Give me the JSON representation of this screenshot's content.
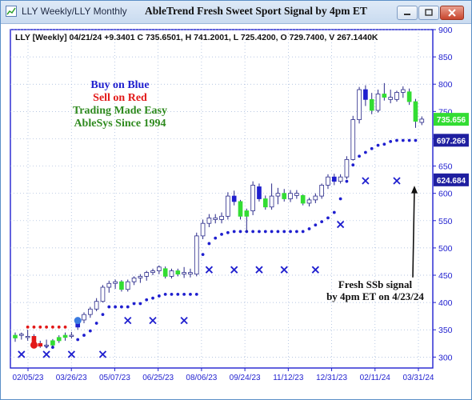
{
  "window": {
    "title": "LLY Weekly/LLY Monthly",
    "chart_title": "AbleTrend Fresh Sweet Sport Signal by 4pm ET"
  },
  "header": {
    "text": "LLY [Weekly] 04/21/24 +9.3401 C 735.6501, H 741.2001, L 725.4200, O 729.7400, V 267.1440K"
  },
  "legend": {
    "line1": "Buy on Blue",
    "line2": "Sell on Red",
    "line3": "Trading Made Easy",
    "line4": "AbleSys Since 1994"
  },
  "annotation": {
    "line1": "Fresh SSb signal",
    "line2": "by 4pm ET on 4/23/24"
  },
  "colors": {
    "green": "#33dd33",
    "blue": "#1f1fcf",
    "red": "#e21818",
    "white_candle": "#ffffff",
    "grid": "#9db3d8",
    "axis": "#1f1fcf",
    "buy_text": "#1f1fcf",
    "sell_text": "#e21818",
    "trading_text": "#2f8a1f"
  },
  "chart_data": {
    "type": "candlestick",
    "title": "AbleTrend Fresh Sweet Sport Signal by 4pm ET",
    "ylim": [
      280,
      900
    ],
    "y_ticks": [
      300,
      350,
      400,
      450,
      500,
      550,
      600,
      650,
      700,
      750,
      800,
      850,
      900
    ],
    "x_tick_labels": [
      "02/05/23",
      "03/26/23",
      "05/07/23",
      "06/25/23",
      "08/06/23",
      "09/24/23",
      "11/12/23",
      "12/31/23",
      "02/11/24",
      "03/31/24"
    ],
    "price_labels": [
      {
        "value": 735.656,
        "text": "735.656",
        "style": "green"
      },
      {
        "value": 697.266,
        "text": "697.266",
        "style": "blue"
      },
      {
        "value": 624.684,
        "text": "624.684",
        "style": "blue"
      }
    ],
    "candles": [
      {
        "o": 335,
        "h": 345,
        "l": 328,
        "c": 340,
        "color": "green"
      },
      {
        "o": 340,
        "h": 345,
        "l": 332,
        "c": 342,
        "color": "white"
      },
      {
        "o": 336,
        "h": 350,
        "l": 330,
        "c": 338,
        "color": "white"
      },
      {
        "o": 338,
        "h": 342,
        "l": 320,
        "c": 325,
        "color": "red"
      },
      {
        "o": 325,
        "h": 330,
        "l": 317,
        "c": 320,
        "color": "red"
      },
      {
        "o": 320,
        "h": 332,
        "l": 316,
        "c": 322,
        "color": "white"
      },
      {
        "o": 322,
        "h": 333,
        "l": 318,
        "c": 330,
        "color": "green"
      },
      {
        "o": 330,
        "h": 340,
        "l": 326,
        "c": 336,
        "color": "green"
      },
      {
        "o": 336,
        "h": 345,
        "l": 330,
        "c": 340,
        "color": "green"
      },
      {
        "o": 340,
        "h": 346,
        "l": 334,
        "c": 338,
        "color": "white"
      },
      {
        "o": 355,
        "h": 372,
        "l": 350,
        "c": 368,
        "color": "blue"
      },
      {
        "o": 368,
        "h": 382,
        "l": 362,
        "c": 378,
        "color": "white"
      },
      {
        "o": 378,
        "h": 392,
        "l": 372,
        "c": 388,
        "color": "white"
      },
      {
        "o": 388,
        "h": 408,
        "l": 384,
        "c": 402,
        "color": "white"
      },
      {
        "o": 402,
        "h": 432,
        "l": 400,
        "c": 428,
        "color": "white"
      },
      {
        "o": 428,
        "h": 440,
        "l": 418,
        "c": 435,
        "color": "white"
      },
      {
        "o": 435,
        "h": 442,
        "l": 425,
        "c": 438,
        "color": "white"
      },
      {
        "o": 438,
        "h": 441,
        "l": 420,
        "c": 424,
        "color": "green"
      },
      {
        "o": 424,
        "h": 442,
        "l": 420,
        "c": 438,
        "color": "white"
      },
      {
        "o": 438,
        "h": 448,
        "l": 432,
        "c": 445,
        "color": "white"
      },
      {
        "o": 445,
        "h": 452,
        "l": 436,
        "c": 448,
        "color": "white"
      },
      {
        "o": 448,
        "h": 458,
        "l": 440,
        "c": 455,
        "color": "white"
      },
      {
        "o": 455,
        "h": 462,
        "l": 450,
        "c": 458,
        "color": "white"
      },
      {
        "o": 458,
        "h": 468,
        "l": 452,
        "c": 465,
        "color": "white"
      },
      {
        "o": 462,
        "h": 466,
        "l": 444,
        "c": 448,
        "color": "green"
      },
      {
        "o": 448,
        "h": 462,
        "l": 444,
        "c": 458,
        "color": "white"
      },
      {
        "o": 458,
        "h": 462,
        "l": 448,
        "c": 452,
        "color": "green"
      },
      {
        "o": 452,
        "h": 465,
        "l": 445,
        "c": 455,
        "color": "white"
      },
      {
        "o": 455,
        "h": 462,
        "l": 446,
        "c": 452,
        "color": "white"
      },
      {
        "o": 452,
        "h": 528,
        "l": 448,
        "c": 522,
        "color": "white"
      },
      {
        "o": 522,
        "h": 552,
        "l": 516,
        "c": 545,
        "color": "white"
      },
      {
        "o": 545,
        "h": 562,
        "l": 538,
        "c": 555,
        "color": "white"
      },
      {
        "o": 555,
        "h": 562,
        "l": 545,
        "c": 552,
        "color": "white"
      },
      {
        "o": 552,
        "h": 565,
        "l": 545,
        "c": 558,
        "color": "white"
      },
      {
        "o": 558,
        "h": 602,
        "l": 552,
        "c": 595,
        "color": "white"
      },
      {
        "o": 595,
        "h": 605,
        "l": 578,
        "c": 585,
        "color": "blue"
      },
      {
        "o": 585,
        "h": 588,
        "l": 552,
        "c": 558,
        "color": "green"
      },
      {
        "o": 558,
        "h": 572,
        "l": 530,
        "c": 568,
        "color": "green"
      },
      {
        "o": 568,
        "h": 622,
        "l": 560,
        "c": 615,
        "color": "white"
      },
      {
        "o": 612,
        "h": 618,
        "l": 585,
        "c": 590,
        "color": "blue"
      },
      {
        "o": 590,
        "h": 596,
        "l": 570,
        "c": 575,
        "color": "green"
      },
      {
        "o": 575,
        "h": 618,
        "l": 570,
        "c": 595,
        "color": "white"
      },
      {
        "o": 595,
        "h": 610,
        "l": 580,
        "c": 600,
        "color": "white"
      },
      {
        "o": 600,
        "h": 608,
        "l": 585,
        "c": 590,
        "color": "green"
      },
      {
        "o": 590,
        "h": 606,
        "l": 584,
        "c": 600,
        "color": "white"
      },
      {
        "o": 600,
        "h": 606,
        "l": 590,
        "c": 596,
        "color": "white"
      },
      {
        "o": 596,
        "h": 598,
        "l": 578,
        "c": 582,
        "color": "green"
      },
      {
        "o": 582,
        "h": 592,
        "l": 576,
        "c": 588,
        "color": "white"
      },
      {
        "o": 588,
        "h": 600,
        "l": 582,
        "c": 595,
        "color": "white"
      },
      {
        "o": 595,
        "h": 618,
        "l": 590,
        "c": 615,
        "color": "white"
      },
      {
        "o": 615,
        "h": 635,
        "l": 608,
        "c": 630,
        "color": "white"
      },
      {
        "o": 630,
        "h": 636,
        "l": 615,
        "c": 622,
        "color": "blue"
      },
      {
        "o": 622,
        "h": 635,
        "l": 618,
        "c": 630,
        "color": "white"
      },
      {
        "o": 630,
        "h": 668,
        "l": 626,
        "c": 662,
        "color": "white"
      },
      {
        "o": 662,
        "h": 742,
        "l": 660,
        "c": 735,
        "color": "white"
      },
      {
        "o": 735,
        "h": 795,
        "l": 728,
        "c": 790,
        "color": "white"
      },
      {
        "o": 790,
        "h": 798,
        "l": 760,
        "c": 772,
        "color": "blue"
      },
      {
        "o": 772,
        "h": 784,
        "l": 745,
        "c": 752,
        "color": "green"
      },
      {
        "o": 752,
        "h": 790,
        "l": 748,
        "c": 782,
        "color": "white"
      },
      {
        "o": 782,
        "h": 802,
        "l": 770,
        "c": 776,
        "color": "green"
      },
      {
        "o": 776,
        "h": 790,
        "l": 765,
        "c": 772,
        "color": "white"
      },
      {
        "o": 772,
        "h": 788,
        "l": 768,
        "c": 785,
        "color": "white"
      },
      {
        "o": 785,
        "h": 796,
        "l": 775,
        "c": 790,
        "color": "white"
      },
      {
        "o": 786,
        "h": 792,
        "l": 762,
        "c": 768,
        "color": "green"
      },
      {
        "o": 768,
        "h": 773,
        "l": 720,
        "c": 732,
        "color": "green"
      },
      {
        "o": 730,
        "h": 741,
        "l": 725,
        "c": 736,
        "color": "white"
      }
    ],
    "stops": {
      "blue_dots": [
        {
          "x": 5,
          "y": 320
        },
        {
          "x": 6,
          "y": 318
        },
        {
          "x": 10,
          "y": 332
        },
        {
          "x": 11,
          "y": 340
        },
        {
          "x": 12,
          "y": 348
        },
        {
          "x": 13,
          "y": 362
        },
        {
          "x": 14,
          "y": 378
        },
        {
          "x": 15,
          "y": 392
        },
        {
          "x": 16,
          "y": 392
        },
        {
          "x": 17,
          "y": 392
        },
        {
          "x": 18,
          "y": 392
        },
        {
          "x": 19,
          "y": 398
        },
        {
          "x": 20,
          "y": 398
        },
        {
          "x": 21,
          "y": 405
        },
        {
          "x": 22,
          "y": 408
        },
        {
          "x": 23,
          "y": 412
        },
        {
          "x": 24,
          "y": 415
        },
        {
          "x": 25,
          "y": 415
        },
        {
          "x": 26,
          "y": 415
        },
        {
          "x": 27,
          "y": 415
        },
        {
          "x": 28,
          "y": 415
        },
        {
          "x": 29,
          "y": 415
        },
        {
          "x": 30,
          "y": 488
        },
        {
          "x": 31,
          "y": 508
        },
        {
          "x": 32,
          "y": 518
        },
        {
          "x": 33,
          "y": 525
        },
        {
          "x": 34,
          "y": 528
        },
        {
          "x": 35,
          "y": 530
        },
        {
          "x": 36,
          "y": 530
        },
        {
          "x": 37,
          "y": 530
        },
        {
          "x": 38,
          "y": 530
        },
        {
          "x": 39,
          "y": 530
        },
        {
          "x": 40,
          "y": 530
        },
        {
          "x": 41,
          "y": 530
        },
        {
          "x": 42,
          "y": 530
        },
        {
          "x": 43,
          "y": 530
        },
        {
          "x": 44,
          "y": 530
        },
        {
          "x": 45,
          "y": 530
        },
        {
          "x": 46,
          "y": 530
        },
        {
          "x": 47,
          "y": 535
        },
        {
          "x": 48,
          "y": 542
        },
        {
          "x": 49,
          "y": 548
        },
        {
          "x": 50,
          "y": 555
        },
        {
          "x": 51,
          "y": 565
        },
        {
          "x": 52,
          "y": 590
        },
        {
          "x": 53,
          "y": 622
        },
        {
          "x": 54,
          "y": 652
        },
        {
          "x": 55,
          "y": 668
        },
        {
          "x": 56,
          "y": 675
        },
        {
          "x": 57,
          "y": 682
        },
        {
          "x": 58,
          "y": 688
        },
        {
          "x": 59,
          "y": 690
        },
        {
          "x": 60,
          "y": 695
        },
        {
          "x": 61,
          "y": 697
        },
        {
          "x": 62,
          "y": 697
        },
        {
          "x": 63,
          "y": 697
        },
        {
          "x": 64,
          "y": 697
        }
      ],
      "red_dots": [
        {
          "x": 2,
          "y": 355
        },
        {
          "x": 3,
          "y": 355
        },
        {
          "x": 4,
          "y": 355
        },
        {
          "x": 5,
          "y": 355
        },
        {
          "x": 6,
          "y": 355
        },
        {
          "x": 7,
          "y": 355
        },
        {
          "x": 8,
          "y": 355
        }
      ]
    },
    "x_markers": [
      {
        "x": 1,
        "y": 305
      },
      {
        "x": 5,
        "y": 305
      },
      {
        "x": 9,
        "y": 305
      },
      {
        "x": 14,
        "y": 305
      },
      {
        "x": 18,
        "y": 367
      },
      {
        "x": 22,
        "y": 367
      },
      {
        "x": 27,
        "y": 367
      },
      {
        "x": 31,
        "y": 460
      },
      {
        "x": 35,
        "y": 460
      },
      {
        "x": 39,
        "y": 460
      },
      {
        "x": 43,
        "y": 460
      },
      {
        "x": 48,
        "y": 460
      },
      {
        "x": 52,
        "y": 543
      },
      {
        "x": 56,
        "y": 623
      },
      {
        "x": 61,
        "y": 623
      }
    ],
    "big_dots": [
      {
        "x": 3,
        "y": 322,
        "color": "red"
      },
      {
        "x": 10,
        "y": 367,
        "color": "blue"
      }
    ]
  }
}
